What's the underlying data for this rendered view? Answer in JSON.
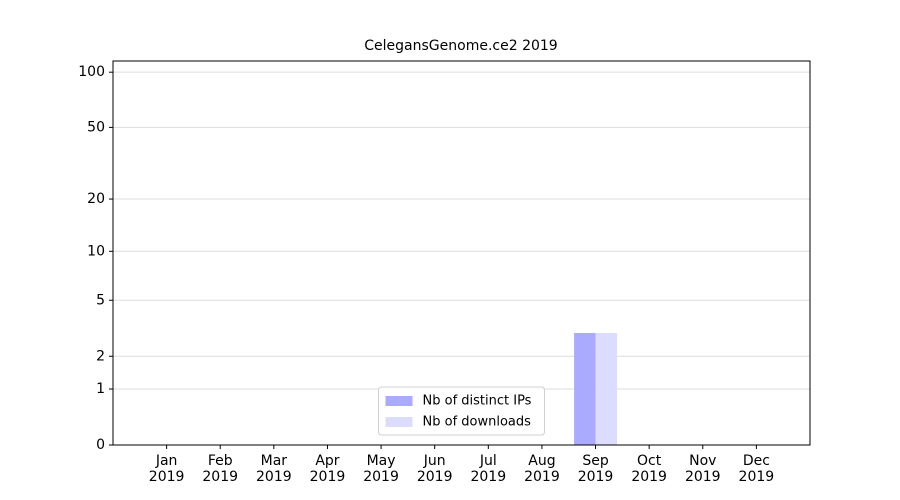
{
  "chart_data": {
    "type": "bar",
    "title": "CelegansGenome.ce2 2019",
    "categories": [
      "Jan\n2019",
      "Feb\n2019",
      "Mar\n2019",
      "Apr\n2019",
      "May\n2019",
      "Jun\n2019",
      "Jul\n2019",
      "Aug\n2019",
      "Sep\n2019",
      "Oct\n2019",
      "Nov\n2019",
      "Dec\n2019"
    ],
    "series": [
      {
        "name": "Nb of distinct IPs",
        "color": "#aaaaff",
        "values": [
          0,
          0,
          0,
          0,
          0,
          0,
          0,
          0,
          3,
          0,
          0,
          0
        ]
      },
      {
        "name": "Nb of downloads",
        "color": "#dcdcff",
        "values": [
          0,
          0,
          0,
          0,
          0,
          0,
          0,
          0,
          3,
          0,
          0,
          0
        ]
      }
    ],
    "yscale": "log1p",
    "ylim": [
      0,
      115
    ],
    "yticks": [
      0,
      1,
      2,
      5,
      10,
      20,
      50,
      100
    ],
    "grid": true,
    "legend": "lower center"
  }
}
